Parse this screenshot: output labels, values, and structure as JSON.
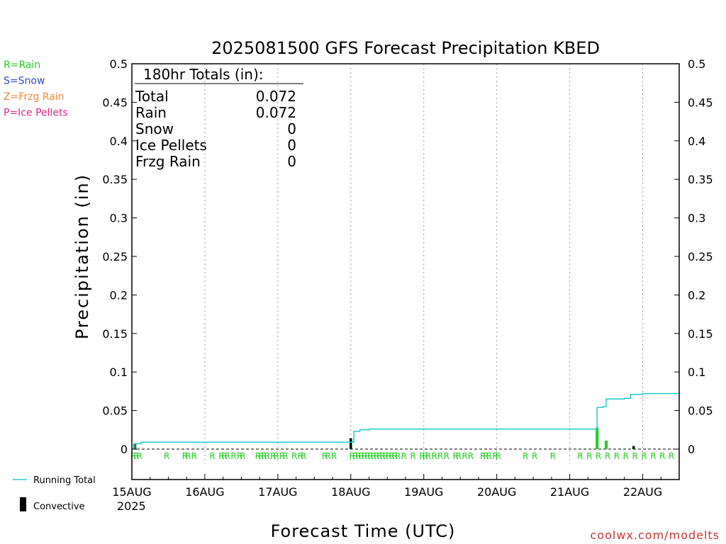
{
  "chart_data": {
    "type": "bar",
    "title": "2025081500 GFS Forecast Precipitation KBED",
    "xlabel": "Forecast Time (UTC)",
    "ylabel": "Precipitation (in)",
    "ylim": [
      0,
      0.5
    ],
    "yticks": [
      "0",
      "0.05",
      "0.1",
      "0.15",
      "0.2",
      "0.25",
      "0.3",
      "0.35",
      "0.4",
      "0.45",
      "0.5"
    ],
    "x_unit": "forecast hour",
    "xlim": [
      0,
      180
    ],
    "xticks": [
      {
        "label": "15AUG",
        "hour": 0
      },
      {
        "label": "16AUG",
        "hour": 24
      },
      {
        "label": "17AUG",
        "hour": 48
      },
      {
        "label": "18AUG",
        "hour": 72
      },
      {
        "label": "19AUG",
        "hour": 96
      },
      {
        "label": "20AUG",
        "hour": 120
      },
      {
        "label": "21AUG",
        "hour": 144
      },
      {
        "label": "22AUG",
        "hour": 168
      }
    ],
    "year_label": "2025",
    "legend_types": [
      {
        "text": "R=Rain",
        "color": "#22cc22"
      },
      {
        "text": "S=Snow",
        "color": "#3344dd"
      },
      {
        "text": "Z=Frzg Rain",
        "color": "#ee8833"
      },
      {
        "text": "P=Ice Pellets",
        "color": "#ee2288"
      }
    ],
    "legend_series": [
      {
        "text": "Running Total",
        "color": "#22cccc",
        "kind": "line"
      },
      {
        "text": "Convective",
        "color": "#000000",
        "kind": "bar"
      }
    ],
    "totals_box": {
      "heading": "180hr Totals (in):",
      "rows": [
        {
          "label": "Total",
          "value": "0.072"
        },
        {
          "label": "Rain",
          "value": "0.072"
        },
        {
          "label": "Snow",
          "value": "0"
        },
        {
          "label": "Ice Pellets",
          "value": "0"
        },
        {
          "label": "Frzg Rain",
          "value": "0"
        }
      ]
    },
    "precip_bars": [
      {
        "hour": 1,
        "value": 0.007,
        "color": "#22cc22"
      },
      {
        "hour": 72,
        "value": 0.014,
        "color": "#22cc22"
      },
      {
        "hour": 153,
        "value": 0.028,
        "color": "#22cc22"
      },
      {
        "hour": 156,
        "value": 0.011,
        "color": "#22cc22"
      },
      {
        "hour": 165,
        "value": 0.003,
        "color": "#22cc22"
      }
    ],
    "convective_bars": [
      {
        "hour": 1,
        "value": 0.007
      },
      {
        "hour": 72,
        "value": 0.014
      },
      {
        "hour": 165,
        "value": 0.004
      }
    ],
    "running_total": [
      {
        "hour": 0,
        "value": 0.0
      },
      {
        "hour": 1,
        "value": 0.007
      },
      {
        "hour": 3,
        "value": 0.009
      },
      {
        "hour": 72,
        "value": 0.009
      },
      {
        "hour": 73,
        "value": 0.023
      },
      {
        "hour": 75,
        "value": 0.025
      },
      {
        "hour": 78,
        "value": 0.026
      },
      {
        "hour": 152,
        "value": 0.026
      },
      {
        "hour": 153,
        "value": 0.054
      },
      {
        "hour": 155,
        "value": 0.055
      },
      {
        "hour": 156,
        "value": 0.065
      },
      {
        "hour": 162,
        "value": 0.066
      },
      {
        "hour": 164,
        "value": 0.071
      },
      {
        "hour": 168,
        "value": 0.072
      },
      {
        "hour": 180,
        "value": 0.072
      }
    ],
    "rain_markers": [
      0,
      1,
      2,
      11,
      17,
      18,
      20,
      26,
      29,
      30,
      31,
      33,
      35,
      36,
      41,
      42,
      43,
      44,
      46,
      47,
      49,
      50,
      53,
      55,
      56,
      63,
      64,
      66,
      72,
      73,
      74,
      75,
      76,
      77,
      78,
      79,
      80,
      81,
      82,
      83,
      84,
      85,
      86,
      87,
      89,
      92,
      95,
      96,
      97,
      99,
      101,
      103,
      106,
      107,
      109,
      111,
      115,
      116,
      117,
      119,
      120,
      129,
      132,
      138,
      147,
      150,
      153,
      156,
      159,
      162,
      165,
      168,
      171,
      174,
      177
    ],
    "marker_char": "R",
    "marker_color": "#22cc22"
  },
  "credit": "coolwx.com/modelts"
}
